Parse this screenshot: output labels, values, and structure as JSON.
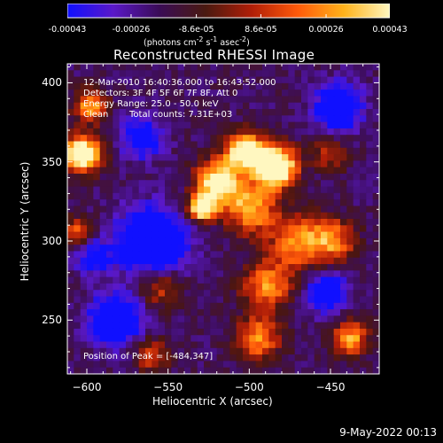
{
  "colorbar": {
    "tick_labels": [
      "-0.00043",
      "-0.00026",
      "-8.6e-05",
      "8.6e-05",
      "0.00026",
      "0.00043"
    ],
    "tick_values": [
      -0.00043,
      -0.00026,
      -8.6e-05,
      8.6e-05,
      0.00026,
      0.00043
    ],
    "range": [
      -0.00043,
      0.00043
    ],
    "units_html": "(photons cm<sup>-2</sup> s<sup>-1</sup> asec<sup>-2</sup>)",
    "colors": [
      "#1010ff",
      "#5a18c8",
      "#3a0c56",
      "#4a1a10",
      "#b01e08",
      "#ff5a0a",
      "#ffb21a",
      "#fff7c0"
    ]
  },
  "chart_data": {
    "type": "heatmap",
    "title": "Reconstructed RHESSI Image",
    "xlabel": "Heliocentric X (arcsec)",
    "ylabel": "Heliocentric Y (arcsec)",
    "xlim": [
      -612,
      -420
    ],
    "ylim": [
      216,
      412
    ],
    "x_ticks": [
      -600,
      -550,
      -500,
      -450
    ],
    "x_tick_labels": [
      "−600",
      "−550",
      "−500",
      "−450"
    ],
    "y_ticks": [
      250,
      300,
      350,
      400
    ],
    "y_tick_labels": [
      "250",
      "300",
      "350",
      "400"
    ],
    "grid": false,
    "peak": {
      "x": -484,
      "y": 347
    },
    "hotspots": [
      {
        "x": -484,
        "y": 347,
        "amp": 1.05,
        "r": 9
      },
      {
        "x": -503,
        "y": 357,
        "amp": 0.85,
        "r": 8
      },
      {
        "x": -519,
        "y": 337,
        "amp": 0.75,
        "r": 10
      },
      {
        "x": -529,
        "y": 321,
        "amp": 0.8,
        "r": 6
      },
      {
        "x": -499,
        "y": 320,
        "amp": 0.55,
        "r": 11
      },
      {
        "x": -470,
        "y": 300,
        "amp": 0.5,
        "r": 12
      },
      {
        "x": -448,
        "y": 300,
        "amp": 0.45,
        "r": 10
      },
      {
        "x": -489,
        "y": 272,
        "amp": 0.5,
        "r": 11
      },
      {
        "x": -495,
        "y": 238,
        "amp": 0.5,
        "r": 10
      },
      {
        "x": -438,
        "y": 238,
        "amp": 0.55,
        "r": 8
      },
      {
        "x": -555,
        "y": 270,
        "amp": 0.35,
        "r": 9
      },
      {
        "x": -560,
        "y": 228,
        "amp": 0.35,
        "r": 8
      },
      {
        "x": -603,
        "y": 355,
        "amp": 0.95,
        "r": 8
      },
      {
        "x": -598,
        "y": 385,
        "amp": 0.55,
        "r": 7
      },
      {
        "x": -606,
        "y": 305,
        "amp": 0.4,
        "r": 7
      },
      {
        "x": -450,
        "y": 355,
        "amp": 0.3,
        "r": 8
      }
    ],
    "coldspots": [
      {
        "x": -560,
        "y": 300,
        "amp": 0.75,
        "r": 14
      },
      {
        "x": -582,
        "y": 250,
        "amp": 0.65,
        "r": 11
      },
      {
        "x": -445,
        "y": 385,
        "amp": 0.6,
        "r": 10
      },
      {
        "x": -452,
        "y": 268,
        "amp": 0.5,
        "r": 9
      },
      {
        "x": -566,
        "y": 365,
        "amp": 0.45,
        "r": 9
      },
      {
        "x": -596,
        "y": 290,
        "amp": 0.4,
        "r": 8
      }
    ]
  },
  "annotations": {
    "time_range": "12-Mar-2010 16:40:36.000 to 16:43:52.000",
    "detectors": "Detectors: 3F 4F 5F 6F 7F 8F, Att 0",
    "energy_range": "Energy Range: 25.0 - 50.0 keV",
    "clean_label": "Clean",
    "total_counts": "Total counts: 7.31E+03",
    "peak_position": "Position of Peak = [-484,347]"
  },
  "footer": {
    "date": "9-May-2022 00:13"
  }
}
